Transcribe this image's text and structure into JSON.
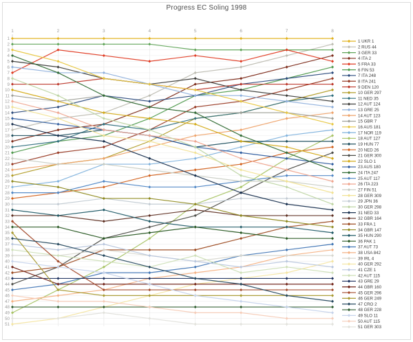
{
  "window": {
    "title": "Progress EC Soling 1998"
  },
  "colors": {
    "background": "#ffffff",
    "frame": "#dcdcdc",
    "grid_h": "#efefef",
    "grid_v": "#e9e9e9",
    "axis_line": "#cccccc",
    "axis_text": "#9b9b9b",
    "title_text": "#4d4d4d",
    "legend_text": "#3c3c3c"
  },
  "chart_data": {
    "type": "line",
    "subtype": "bump-ranking-chart",
    "title": "Progress EC Soling 1998",
    "xlabel": "",
    "ylabel": "",
    "x_axis_position": "top",
    "x_ticks": [
      1,
      2,
      3,
      4,
      5,
      6,
      7,
      8
    ],
    "xlim": [
      1,
      8
    ],
    "y_ticks": [
      1,
      2,
      3,
      4,
      5,
      6,
      7,
      8,
      9,
      10,
      11,
      12,
      13,
      14,
      15,
      16,
      17,
      18,
      19,
      20,
      21,
      22,
      23,
      24,
      25,
      26,
      27,
      28,
      29,
      30,
      31,
      32,
      33,
      34,
      35,
      36,
      37,
      38,
      39,
      40,
      41,
      42,
      43,
      44,
      45,
      46,
      47,
      48,
      49,
      50,
      51
    ],
    "ylim": [
      1,
      51
    ],
    "y_inverted": true,
    "grid": true,
    "marker": "diamond",
    "legend_position": "right",
    "series": [
      {
        "rank": 1,
        "label": "1 UKR 1",
        "color": "#e2b320",
        "positions": [
          1,
          1,
          1,
          1,
          1,
          1,
          1,
          1
        ]
      },
      {
        "rank": 2,
        "label": "2 RUS 44",
        "color": "#bdbcb1",
        "positions": [
          17,
          15,
          14,
          11,
          7,
          6,
          4,
          2
        ]
      },
      {
        "rank": 3,
        "label": "3 GER 33",
        "color": "#5ea356",
        "positions": [
          2,
          2,
          2,
          2,
          3,
          3,
          3,
          3
        ]
      },
      {
        "rank": 4,
        "label": "4 ITA 2",
        "color": "#7d2b1a",
        "positions": [
          19,
          17,
          16,
          13,
          9,
          8,
          6,
          4
        ]
      },
      {
        "rank": 5,
        "label": "5 FRA 33",
        "color": "#df3a22",
        "positions": [
          7,
          3,
          4,
          5,
          4,
          5,
          3,
          5
        ]
      },
      {
        "rank": 6,
        "label": "6 FIN 53",
        "color": "#4f9a4d",
        "positions": [
          21,
          19,
          18,
          15,
          11,
          10,
          8,
          6
        ]
      },
      {
        "rank": 7,
        "label": "7 ITA 248",
        "color": "#2a4a7c",
        "positions": [
          14,
          13,
          11,
          12,
          11,
          9,
          8,
          7
        ]
      },
      {
        "rank": 8,
        "label": "8 ITA 241",
        "color": "#973822",
        "positions": [
          23,
          21,
          20,
          17,
          13,
          12,
          10,
          8
        ]
      },
      {
        "rank": 9,
        "label": "9 DEN 120",
        "color": "#bc3427",
        "positions": [
          9,
          9,
          8,
          9,
          10,
          9,
          9,
          9
        ]
      },
      {
        "rank": 10,
        "label": "10 GER 297",
        "color": "#b19c26",
        "positions": [
          25,
          23,
          22,
          19,
          15,
          14,
          12,
          10
        ]
      },
      {
        "rank": 11,
        "label": "11 NED 35",
        "color": "#2f6f7d",
        "positions": [
          20,
          19,
          16,
          17,
          15,
          14,
          12,
          11
        ]
      },
      {
        "rank": 12,
        "label": "12 AUT 124",
        "color": "#3b3b38",
        "positions": [
          5,
          6,
          8,
          9,
          8,
          10,
          11,
          12
        ]
      },
      {
        "rank": 13,
        "label": "13 GRE 25",
        "color": "#8fb0dc",
        "positions": [
          6,
          7,
          7,
          9,
          11,
          11,
          12,
          13
        ]
      },
      {
        "rank": 14,
        "label": "14 AUT 123",
        "color": "#eea269",
        "positions": [
          24,
          23,
          22,
          20,
          18,
          17,
          15,
          14
        ]
      },
      {
        "rank": 15,
        "label": "15 GBR 7",
        "color": "#9fa099",
        "positions": [
          11,
          12,
          11,
          13,
          14,
          14,
          14,
          15
        ]
      },
      {
        "rank": 16,
        "label": "16 AUS 181",
        "color": "#e7c63e",
        "positions": [
          3,
          5,
          8,
          9,
          10,
          12,
          14,
          16
        ]
      },
      {
        "rank": 17,
        "label": "17 NOR 119",
        "color": "#7fb2dd",
        "positions": [
          27,
          26,
          23,
          23,
          22,
          20,
          18,
          17
        ]
      },
      {
        "rank": 18,
        "label": "18 AUT 127",
        "color": "#a8c465",
        "positions": [
          49,
          45,
          41,
          36,
          30,
          27,
          22,
          18
        ]
      },
      {
        "rank": 19,
        "label": "19 HUN 77",
        "color": "#20505f",
        "positions": [
          18,
          18,
          17,
          18,
          20,
          19,
          19,
          19
        ]
      },
      {
        "rank": 20,
        "label": "20 NED 26",
        "color": "#d2611c",
        "positions": [
          29,
          28,
          27,
          25,
          24,
          23,
          21,
          20
        ]
      },
      {
        "rank": 21,
        "label": "21 GER 300",
        "color": "#4b4b46",
        "positions": [
          44,
          41,
          36,
          34,
          32,
          28,
          24,
          21
        ]
      },
      {
        "rank": 22,
        "label": "22 SLO 1",
        "color": "#d3a914",
        "positions": [
          10,
          12,
          14,
          15,
          16,
          19,
          20,
          22
        ]
      },
      {
        "rank": 23,
        "label": "23 AUS 180",
        "color": "#2d5b9e",
        "positions": [
          15,
          16,
          17,
          18,
          20,
          21,
          22,
          23
        ]
      },
      {
        "rank": 24,
        "label": "24 ITA 247",
        "color": "#306b34",
        "positions": [
          4,
          7,
          11,
          13,
          14,
          18,
          21,
          24
        ]
      },
      {
        "rank": 25,
        "label": "25 AUT 117",
        "color": "#4f86c5",
        "positions": [
          28,
          28,
          26,
          27,
          27,
          26,
          25,
          25
        ]
      },
      {
        "rank": 26,
        "label": "26 ITA 223",
        "color": "#efa58f",
        "positions": [
          12,
          14,
          17,
          18,
          19,
          22,
          24,
          26
        ]
      },
      {
        "rank": 27,
        "label": "27 FIN 51",
        "color": "#c8ccc3",
        "positions": [
          22,
          23,
          23,
          24,
          25,
          26,
          26,
          27
        ]
      },
      {
        "rank": 28,
        "label": "28 GER 309",
        "color": "#f1e293",
        "positions": [
          13,
          15,
          18,
          19,
          21,
          24,
          26,
          28
        ]
      },
      {
        "rank": 29,
        "label": "29 JPN 36",
        "color": "#c2cbd3",
        "positions": [
          30,
          30,
          29,
          30,
          30,
          29,
          29,
          29
        ]
      },
      {
        "rank": 30,
        "label": "30 GER 298",
        "color": "#bed5a3",
        "positions": [
          8,
          11,
          15,
          17,
          20,
          25,
          27,
          30
        ]
      },
      {
        "rank": 31,
        "label": "31 NED 33",
        "color": "#182f4e",
        "positions": [
          16,
          18,
          19,
          22,
          25,
          28,
          30,
          31
        ]
      },
      {
        "rank": 32,
        "label": "32 GBR 164",
        "color": "#5d2d20",
        "positions": [
          32,
          32,
          33,
          32,
          31,
          32,
          32,
          32
        ]
      },
      {
        "rank": 33,
        "label": "33 FRA 1",
        "color": "#9c4a20",
        "positions": [
          42,
          41,
          38,
          38,
          38,
          36,
          34,
          33
        ]
      },
      {
        "rank": 34,
        "label": "34 GBR 147",
        "color": "#8f8a1f",
        "positions": [
          26,
          27,
          29,
          29,
          30,
          32,
          33,
          34
        ]
      },
      {
        "rank": 35,
        "label": "35 HUN 290",
        "color": "#1f5a66",
        "positions": [
          31,
          32,
          31,
          33,
          34,
          34,
          34,
          35
        ]
      },
      {
        "rank": 36,
        "label": "36 PAK 1",
        "color": "#265620",
        "positions": [
          34,
          34,
          36,
          35,
          34,
          35,
          36,
          36
        ]
      },
      {
        "rank": 37,
        "label": "37 AUT 73",
        "color": "#3f74b4",
        "positions": [
          45,
          44,
          42,
          42,
          41,
          39,
          38,
          37
        ]
      },
      {
        "rank": 38,
        "label": "38 USA 842",
        "color": "#f4b183",
        "positions": [
          47,
          46,
          45,
          43,
          42,
          41,
          39,
          38
        ]
      },
      {
        "rank": 39,
        "label": "39 IRL 4",
        "color": "#d7d7cf",
        "positions": [
          39,
          39,
          38,
          39,
          40,
          39,
          39,
          39
        ]
      },
      {
        "rank": 40,
        "label": "40 GER 292",
        "color": "#f4e5a2",
        "positions": [
          51,
          50,
          48,
          46,
          44,
          43,
          42,
          40
        ]
      },
      {
        "rank": 41,
        "label": "41 CZE 1",
        "color": "#b8c6dd",
        "positions": [
          37,
          38,
          37,
          39,
          40,
          41,
          40,
          41
        ]
      },
      {
        "rank": 42,
        "label": "42 AUT 115",
        "color": "#cedfb7",
        "positions": [
          38,
          39,
          40,
          41,
          39,
          42,
          41,
          42
        ]
      },
      {
        "rank": 43,
        "label": "43 GRE 29",
        "color": "#1c2f5d",
        "positions": [
          43,
          43,
          43,
          43,
          43,
          43,
          43,
          43
        ]
      },
      {
        "rank": 44,
        "label": "44 GBR 160",
        "color": "#6f2015",
        "positions": [
          41,
          44,
          44,
          44,
          44,
          44,
          44,
          44
        ]
      },
      {
        "rank": 45,
        "label": "45 GER 296",
        "color": "#a34a2b",
        "positions": [
          33,
          40,
          45,
          45,
          45,
          45,
          45,
          45
        ]
      },
      {
        "rank": 46,
        "label": "46 GER 249",
        "color": "#a89a30",
        "positions": [
          35,
          45,
          46,
          46,
          46,
          46,
          46,
          46
        ]
      },
      {
        "rank": 47,
        "label": "47 CRO 2",
        "color": "#25485e",
        "positions": [
          36,
          37,
          39,
          41,
          43,
          44,
          46,
          47
        ]
      },
      {
        "rank": 48,
        "label": "48 GER 228",
        "color": "#2f5e2f",
        "positions": [
          48,
          48,
          48,
          48,
          48,
          48,
          48,
          48
        ]
      },
      {
        "rank": 49,
        "label": "49 SLO 11",
        "color": "#c6d3eb",
        "positions": [
          40,
          41,
          42,
          44,
          46,
          47,
          48,
          49
        ]
      },
      {
        "rank": 50,
        "label": "50 AUT 115",
        "color": "#f5ccb8",
        "positions": [
          46,
          47,
          47,
          48,
          49,
          49,
          50,
          50
        ]
      },
      {
        "rank": 51,
        "label": "51 GER 303",
        "color": "#e2e2dc",
        "positions": [
          50,
          50,
          49,
          50,
          51,
          51,
          51,
          51
        ]
      }
    ]
  }
}
